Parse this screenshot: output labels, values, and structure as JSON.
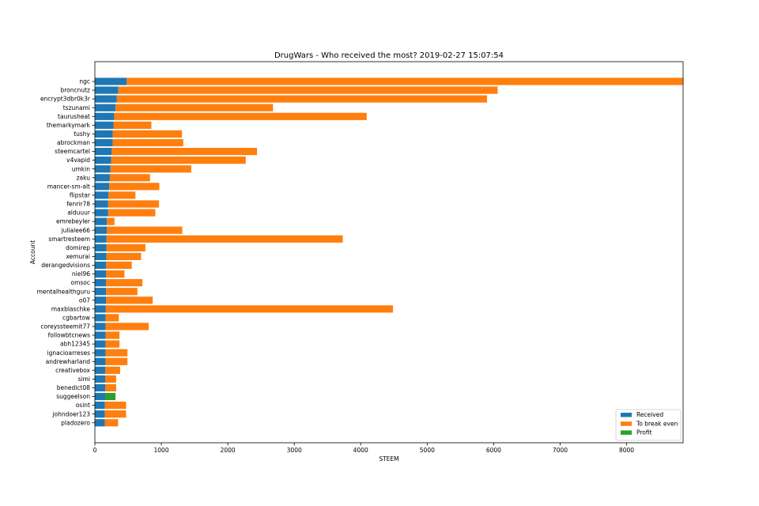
{
  "chart_data": {
    "type": "bar",
    "orientation": "horizontal",
    "stacked": true,
    "title": "DrugWars - Who received the most? 2019-02-27 15:07:54",
    "xlabel": "STEEM",
    "ylabel": "Account",
    "xlim": [
      0,
      8850
    ],
    "xticks": [
      0,
      1000,
      2000,
      3000,
      4000,
      5000,
      6000,
      7000,
      8000
    ],
    "legend_position": "bottom-right",
    "categories": [
      "ngc",
      "broncnutz",
      "encrypt3dbr0k3r",
      "tszunami",
      "taurusheat",
      "themarkymark",
      "tushy",
      "abrockman",
      "steemcartel",
      "v4vapid",
      "umkin",
      "zaku",
      "mancer-sm-alt",
      "flipstar",
      "fenrir78",
      "alduuur",
      "emrebeyler",
      "julialee66",
      "smartresteem",
      "domirep",
      "xemurai",
      "derangedvisions",
      "niel96",
      "omsoc",
      "mentalhealthguru",
      "o07",
      "maxblaschke",
      "cgbartow",
      "coreyssteemit77",
      "followbtcnews",
      "abh12345",
      "ignacioarreses",
      "andrewharland",
      "creativebox",
      "simi",
      "benedict08",
      "suggeelson",
      "osint",
      "johndoer123",
      "pladozero"
    ],
    "series": [
      {
        "name": "Received",
        "color": "#1f77b4",
        "values": [
          480,
          350,
          330,
          310,
          290,
          280,
          270,
          270,
          250,
          245,
          235,
          225,
          215,
          205,
          200,
          200,
          180,
          180,
          175,
          175,
          175,
          170,
          170,
          170,
          170,
          170,
          165,
          160,
          160,
          160,
          160,
          160,
          160,
          155,
          155,
          155,
          155,
          150,
          150,
          150
        ]
      },
      {
        "name": "To break even",
        "color": "#ff7f0e",
        "values": [
          8370,
          5710,
          5570,
          2370,
          3800,
          570,
          1040,
          1060,
          2190,
          2025,
          1215,
          605,
          755,
          405,
          765,
          710,
          115,
          1135,
          3555,
          585,
          520,
          385,
          275,
          545,
          470,
          700,
          4320,
          200,
          650,
          210,
          210,
          330,
          330,
          225,
          165,
          165,
          0,
          320,
          320,
          200
        ]
      },
      {
        "name": "Profit",
        "color": "#2ca02c",
        "values": [
          0,
          0,
          0,
          0,
          0,
          0,
          0,
          0,
          0,
          0,
          0,
          0,
          0,
          0,
          0,
          0,
          0,
          0,
          0,
          0,
          0,
          0,
          0,
          0,
          0,
          0,
          0,
          0,
          0,
          0,
          0,
          0,
          0,
          0,
          0,
          0,
          155,
          0,
          0,
          0
        ]
      }
    ]
  }
}
